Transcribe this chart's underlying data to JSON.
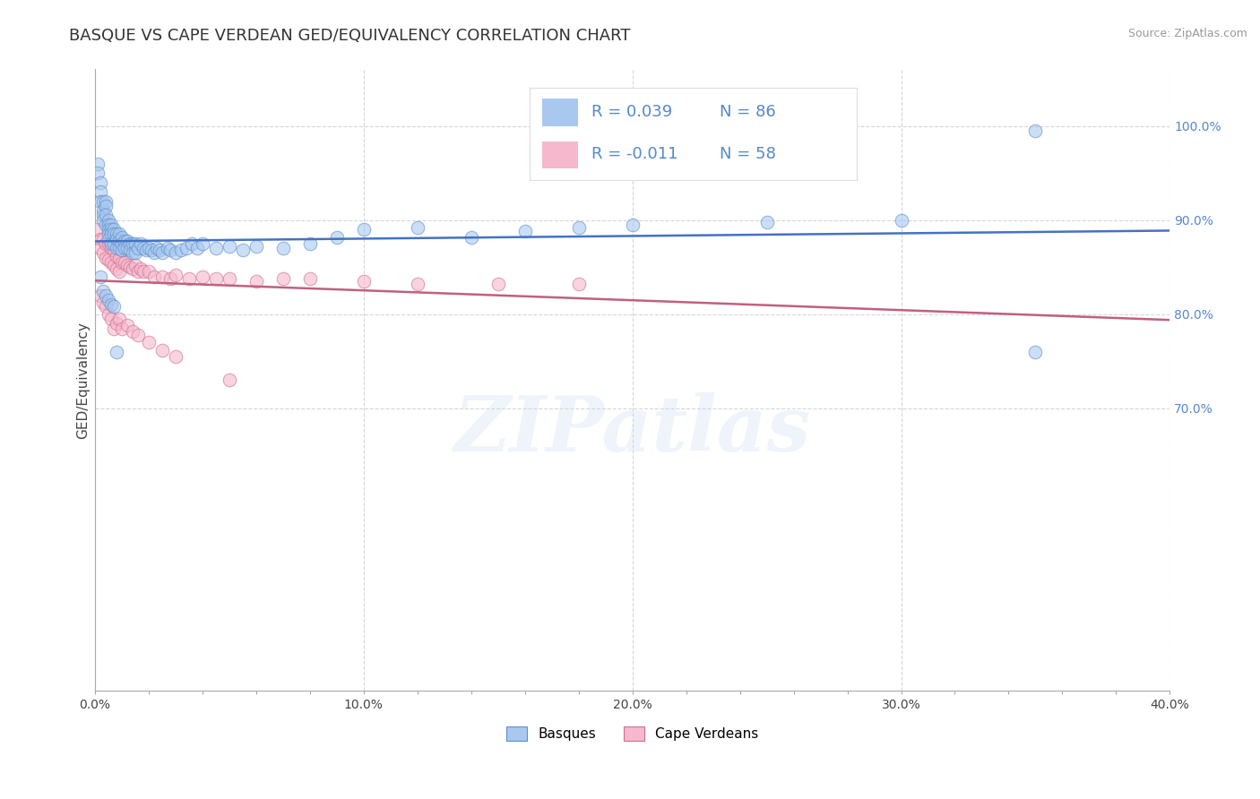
{
  "title": "BASQUE VS CAPE VERDEAN GED/EQUIVALENCY CORRELATION CHART",
  "ylabel": "GED/Equivalency",
  "source_text": "Source: ZipAtlas.com",
  "watermark": "ZIPatlas",
  "xlim": [
    0.0,
    0.4
  ],
  "ylim": [
    0.4,
    1.06
  ],
  "xtick_labels": [
    "0.0%",
    "",
    "",
    "",
    "",
    "10.0%",
    "",
    "",
    "",
    "",
    "20.0%",
    "",
    "",
    "",
    "",
    "30.0%",
    "",
    "",
    "",
    "",
    "40.0%"
  ],
  "xtick_vals": [
    0.0,
    0.02,
    0.04,
    0.06,
    0.08,
    0.1,
    0.12,
    0.14,
    0.16,
    0.18,
    0.2,
    0.22,
    0.24,
    0.26,
    0.28,
    0.3,
    0.32,
    0.34,
    0.36,
    0.38,
    0.4
  ],
  "ytick_labels": [
    "100.0%",
    "90.0%",
    "80.0%",
    "70.0%"
  ],
  "ytick_vals": [
    1.0,
    0.9,
    0.8,
    0.7
  ],
  "basque_color": "#a8c8f0",
  "cape_verdean_color": "#f5b8cc",
  "basque_edge_color": "#6090c8",
  "cape_verdean_edge_color": "#d07090",
  "basque_trend_color": "#4472c4",
  "cape_verdean_trend_color": "#c06080",
  "trend_linewidth": 1.8,
  "dot_size": 110,
  "dot_alpha": 0.6,
  "background_color": "#ffffff",
  "grid_color": "#cccccc",
  "grid_linestyle": "--",
  "grid_alpha": 0.8,
  "title_fontsize": 13,
  "axis_label_fontsize": 11,
  "tick_fontsize": 10,
  "ytick_color": "#5588cc",
  "bottom_legend_labels": [
    "Basques",
    "Cape Verdeans"
  ],
  "bottom_legend_colors": [
    "#a8c8f0",
    "#f5b8cc"
  ],
  "R_basque_text": "R = 0.039",
  "N_basque_text": "N = 86",
  "R_cape_text": "R = -0.011",
  "N_cape_text": "N = 58",
  "legend_R_color": "#5588cc",
  "legend_N_color": "#5588cc",
  "basque_x": [
    0.001,
    0.001,
    0.002,
    0.002,
    0.002,
    0.003,
    0.003,
    0.003,
    0.003,
    0.004,
    0.004,
    0.004,
    0.004,
    0.005,
    0.005,
    0.005,
    0.005,
    0.005,
    0.006,
    0.006,
    0.006,
    0.006,
    0.007,
    0.007,
    0.007,
    0.008,
    0.008,
    0.008,
    0.009,
    0.009,
    0.009,
    0.01,
    0.01,
    0.01,
    0.011,
    0.011,
    0.012,
    0.012,
    0.013,
    0.013,
    0.014,
    0.014,
    0.015,
    0.015,
    0.016,
    0.017,
    0.018,
    0.019,
    0.02,
    0.021,
    0.022,
    0.023,
    0.024,
    0.025,
    0.027,
    0.028,
    0.03,
    0.032,
    0.034,
    0.036,
    0.038,
    0.04,
    0.045,
    0.05,
    0.055,
    0.06,
    0.07,
    0.08,
    0.09,
    0.1,
    0.12,
    0.14,
    0.16,
    0.18,
    0.2,
    0.25,
    0.3,
    0.35,
    0.002,
    0.003,
    0.004,
    0.005,
    0.006,
    0.007,
    0.008,
    0.35
  ],
  "basque_y": [
    0.96,
    0.95,
    0.94,
    0.93,
    0.92,
    0.92,
    0.91,
    0.905,
    0.9,
    0.92,
    0.915,
    0.905,
    0.895,
    0.9,
    0.895,
    0.89,
    0.885,
    0.88,
    0.895,
    0.89,
    0.885,
    0.875,
    0.89,
    0.885,
    0.875,
    0.885,
    0.88,
    0.87,
    0.885,
    0.878,
    0.87,
    0.882,
    0.875,
    0.868,
    0.878,
    0.87,
    0.878,
    0.87,
    0.875,
    0.868,
    0.875,
    0.865,
    0.875,
    0.865,
    0.87,
    0.875,
    0.87,
    0.868,
    0.87,
    0.868,
    0.865,
    0.87,
    0.868,
    0.865,
    0.87,
    0.868,
    0.865,
    0.868,
    0.87,
    0.875,
    0.87,
    0.875,
    0.87,
    0.872,
    0.868,
    0.872,
    0.87,
    0.875,
    0.882,
    0.89,
    0.892,
    0.882,
    0.888,
    0.892,
    0.895,
    0.898,
    0.9,
    0.995,
    0.84,
    0.825,
    0.82,
    0.815,
    0.81,
    0.808,
    0.76,
    0.76
  ],
  "cape_x": [
    0.001,
    0.002,
    0.002,
    0.003,
    0.003,
    0.004,
    0.004,
    0.005,
    0.005,
    0.006,
    0.006,
    0.007,
    0.007,
    0.008,
    0.008,
    0.009,
    0.009,
    0.01,
    0.011,
    0.012,
    0.013,
    0.014,
    0.015,
    0.016,
    0.017,
    0.018,
    0.02,
    0.022,
    0.025,
    0.028,
    0.03,
    0.035,
    0.04,
    0.045,
    0.05,
    0.06,
    0.07,
    0.08,
    0.1,
    0.12,
    0.15,
    0.18,
    0.002,
    0.003,
    0.004,
    0.005,
    0.006,
    0.007,
    0.008,
    0.009,
    0.01,
    0.012,
    0.014,
    0.016,
    0.02,
    0.025,
    0.03,
    0.05
  ],
  "cape_y": [
    0.89,
    0.88,
    0.87,
    0.88,
    0.865,
    0.875,
    0.86,
    0.875,
    0.858,
    0.87,
    0.855,
    0.868,
    0.852,
    0.862,
    0.848,
    0.86,
    0.845,
    0.855,
    0.855,
    0.852,
    0.85,
    0.848,
    0.852,
    0.845,
    0.848,
    0.845,
    0.845,
    0.84,
    0.84,
    0.838,
    0.842,
    0.838,
    0.84,
    0.838,
    0.838,
    0.835,
    0.838,
    0.838,
    0.835,
    0.832,
    0.832,
    0.832,
    0.82,
    0.812,
    0.808,
    0.8,
    0.795,
    0.785,
    0.79,
    0.795,
    0.785,
    0.788,
    0.782,
    0.778,
    0.77,
    0.762,
    0.755,
    0.73
  ]
}
